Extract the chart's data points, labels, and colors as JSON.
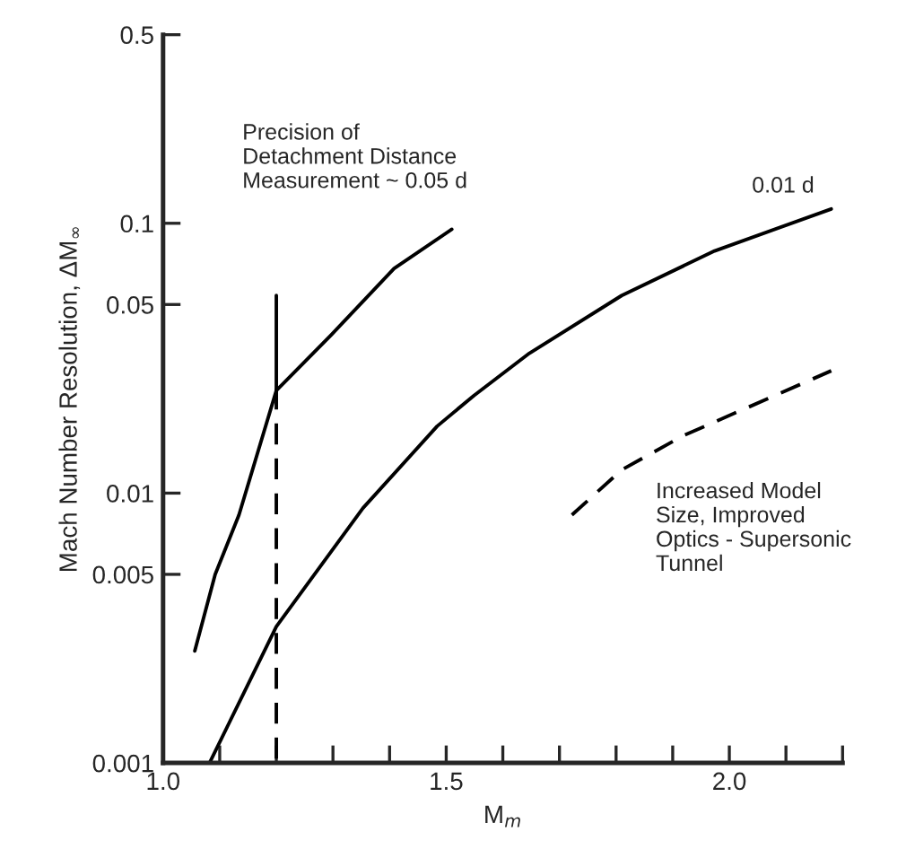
{
  "chart_data": {
    "type": "line",
    "xlabel": "M$_{m}$",
    "ylabel": "Mach Number Resolution, ΔM$_{∞}$",
    "log": "y",
    "grid": false,
    "legend": false,
    "xlim": [
      1.0,
      2.2
    ],
    "ylim": [
      0.001,
      0.5
    ],
    "xticks": [
      {
        "value": 1.0,
        "label": "1.0"
      },
      {
        "value": 1.1,
        "label": null
      },
      {
        "value": 1.2,
        "label": null
      },
      {
        "value": 1.3,
        "label": null
      },
      {
        "value": 1.4,
        "label": null
      },
      {
        "value": 1.5,
        "label": "1.5"
      },
      {
        "value": 1.6,
        "label": null
      },
      {
        "value": 1.7,
        "label": null
      },
      {
        "value": 1.8,
        "label": null
      },
      {
        "value": 1.9,
        "label": null
      },
      {
        "value": 2.0,
        "label": "2.0"
      },
      {
        "value": 2.1,
        "label": null
      },
      {
        "value": 2.2,
        "label": null
      }
    ],
    "yticks": [
      0.001,
      0.005,
      0.01,
      0.05,
      0.1,
      0.5
    ],
    "series": [
      {
        "name": "Precision of\nDetachment Distance\nMeasurement ~ 0.05 d",
        "color": "#000000",
        "line_style": "solid",
        "x": [
          1.056,
          1.092,
          1.134,
          1.2,
          1.297,
          1.408,
          1.51
        ],
        "values": [
          0.0026,
          0.005,
          0.0083,
          0.024,
          0.0386,
          0.068,
          0.095
        ]
      },
      {
        "name": "0.01 d",
        "color": "#000000",
        "line_style": "solid",
        "x": [
          1.082,
          1.2,
          1.353,
          1.484,
          1.549,
          1.647,
          1.81,
          1.974,
          2.18
        ],
        "values": [
          0.001,
          0.0032,
          0.0088,
          0.0177,
          0.023,
          0.033,
          0.054,
          0.079,
          0.113
        ]
      },
      {
        "name": "Increased Model\nSize, Improved\nOptics - Supersonic\nTunnel",
        "color": "#000000",
        "line_style": "dashed",
        "x": [
          1.722,
          1.81,
          1.918,
          2.18
        ],
        "values": [
          0.0083,
          0.0122,
          0.0163,
          0.0284
        ]
      },
      {
        "color": "#000000",
        "line_style": "solid",
        "x": [
          1.2,
          1.2
        ],
        "values": [
          0.054,
          0.0244
        ]
      },
      {
        "color": "#000000",
        "line_style": "dashed",
        "x": [
          1.2,
          1.2
        ],
        "values": [
          0.0244,
          0.001
        ]
      }
    ]
  }
}
